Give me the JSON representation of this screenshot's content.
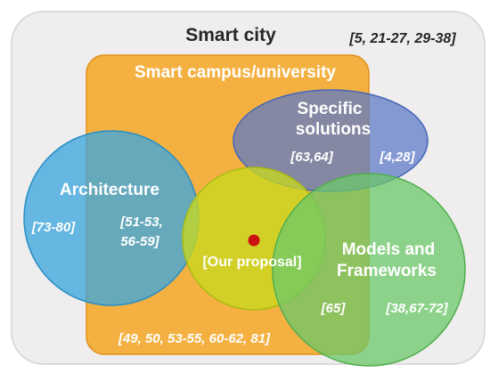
{
  "diagram": {
    "smart_city": {
      "label": "Smart city",
      "refs": "[5, 21-27, 29-38]",
      "color": "#efeded"
    },
    "smart_campus": {
      "label": "Smart campus/university",
      "refs": "[49, 50, 53-55, 60-62, 81]",
      "color": "#f5a623"
    },
    "specific_solutions": {
      "label_line1": "Specific",
      "label_line2": "solutions",
      "refs_inside_campus": "[63,64]",
      "refs_outside_campus": "[4,28]",
      "color": "#5a78c8"
    },
    "architecture": {
      "label": "Architecture",
      "refs_outside_campus": "[73-80]",
      "refs_inside_campus_line1": "[51-53,",
      "refs_inside_campus_line2": "56-59]",
      "color": "#3ea6de"
    },
    "our_proposal": {
      "label": "[Our proposal]",
      "color": "#c8d820",
      "dot_color": "#cc1111"
    },
    "models_frameworks": {
      "label_line1": "Models and",
      "label_line2": "Frameworks",
      "refs_inside_campus": "[65]",
      "refs_outside_campus": "[38,67-72]",
      "color": "#6cc86a"
    }
  }
}
